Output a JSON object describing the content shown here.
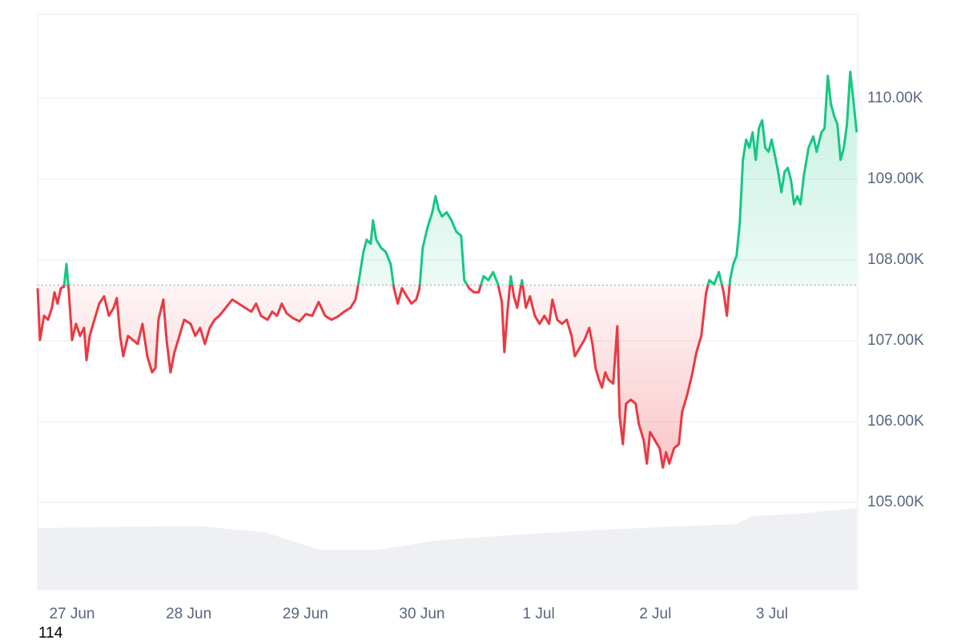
{
  "chart_data": {
    "type": "line",
    "xlim": [
      -0.295,
      6.735
    ],
    "xticks": [
      {
        "value": 0,
        "label": "27 Jun"
      },
      {
        "value": 1,
        "label": "28 Jun"
      },
      {
        "value": 2,
        "label": "29 Jun"
      },
      {
        "value": 3,
        "label": "30 Jun"
      },
      {
        "value": 4,
        "label": "1 Jul"
      },
      {
        "value": 5,
        "label": "2 Jul"
      },
      {
        "value": 6,
        "label": "3 Jul"
      }
    ],
    "ylim": [
      103920,
      111040
    ],
    "yticks": [
      {
        "value": 105000,
        "label": "105.00K"
      },
      {
        "value": 106000,
        "label": "106.00K"
      },
      {
        "value": 107000,
        "label": "107.00K"
      },
      {
        "value": 108000,
        "label": "108.00K"
      },
      {
        "value": 109000,
        "label": "109.00K"
      },
      {
        "value": 110000,
        "label": "110.00K"
      }
    ],
    "grid": true,
    "baseline": 107690,
    "up_color": "#16c784",
    "down_color": "#ea3943",
    "x": [
      -0.295,
      -0.275,
      -0.24,
      -0.206,
      -0.172,
      -0.151,
      -0.124,
      -0.096,
      -0.069,
      -0.048,
      -0.027,
      0,
      0.034,
      0.069,
      0.103,
      0.124,
      0.151,
      0.192,
      0.233,
      0.275,
      0.316,
      0.357,
      0.384,
      0.412,
      0.439,
      0.48,
      0.522,
      0.563,
      0.604,
      0.645,
      0.686,
      0.714,
      0.741,
      0.782,
      0.81,
      0.844,
      0.878,
      0.92,
      0.961,
      1.016,
      1.057,
      1.098,
      1.139,
      1.18,
      1.222,
      1.263,
      1.318,
      1.373,
      1.428,
      1.482,
      1.537,
      1.578,
      1.62,
      1.675,
      1.716,
      1.757,
      1.798,
      1.839,
      1.894,
      1.949,
      2.004,
      2.059,
      2.114,
      2.169,
      2.224,
      2.279,
      2.333,
      2.388,
      2.43,
      2.457,
      2.498,
      2.526,
      2.56,
      2.58,
      2.608,
      2.649,
      2.69,
      2.731,
      2.759,
      2.793,
      2.828,
      2.869,
      2.91,
      2.951,
      2.979,
      3.006,
      3.047,
      3.088,
      3.116,
      3.143,
      3.171,
      3.212,
      3.253,
      3.294,
      3.335,
      3.363,
      3.404,
      3.445,
      3.486,
      3.528,
      3.569,
      3.61,
      3.651,
      3.685,
      3.706,
      3.733,
      3.761,
      3.788,
      3.816,
      3.857,
      3.891,
      3.926,
      3.967,
      4.008,
      4.049,
      4.09,
      4.118,
      4.159,
      4.2,
      4.241,
      4.282,
      4.31,
      4.351,
      4.392,
      4.434,
      4.461,
      4.488,
      4.516,
      4.543,
      4.571,
      4.598,
      4.639,
      4.674,
      4.694,
      4.722,
      4.749,
      4.79,
      4.832,
      4.859,
      4.9,
      4.928,
      4.955,
      4.996,
      5.037,
      5.065,
      5.092,
      5.12,
      5.161,
      5.202,
      5.23,
      5.271,
      5.312,
      5.353,
      5.394,
      5.436,
      5.463,
      5.504,
      5.545,
      5.586,
      5.614,
      5.641,
      5.669,
      5.696,
      5.724,
      5.751,
      5.779,
      5.806,
      5.834,
      5.861,
      5.888,
      5.916,
      5.943,
      5.971,
      5.998,
      6.026,
      6.053,
      6.081,
      6.108,
      6.136,
      6.163,
      6.19,
      6.218,
      6.245,
      6.273,
      6.314,
      6.355,
      6.383,
      6.424,
      6.451,
      6.479,
      6.506,
      6.534,
      6.561,
      6.588,
      6.616,
      6.643,
      6.671,
      6.698,
      6.726
    ],
    "values": [
      107650,
      107010,
      107310,
      107260,
      107410,
      107600,
      107460,
      107650,
      107670,
      107950,
      107600,
      107010,
      107210,
      107060,
      107160,
      106760,
      107060,
      107260,
      107460,
      107550,
      107310,
      107410,
      107530,
      107060,
      106810,
      107060,
      107010,
      106960,
      107210,
      106810,
      106610,
      106660,
      107260,
      107510,
      107010,
      106610,
      106860,
      107060,
      107260,
      107210,
      107060,
      107160,
      106960,
      107160,
      107260,
      107310,
      107410,
      107510,
      107460,
      107410,
      107360,
      107460,
      107310,
      107260,
      107360,
      107310,
      107460,
      107340,
      107280,
      107240,
      107330,
      107310,
      107480,
      107310,
      107260,
      107300,
      107360,
      107410,
      107510,
      107730,
      108100,
      108250,
      108200,
      108490,
      108250,
      108150,
      108100,
      107950,
      107650,
      107460,
      107650,
      107550,
      107460,
      107510,
      107650,
      108150,
      108400,
      108590,
      108790,
      108620,
      108540,
      108590,
      108490,
      108350,
      108300,
      107750,
      107650,
      107600,
      107600,
      107800,
      107750,
      107850,
      107700,
      107480,
      106860,
      107360,
      107800,
      107550,
      107410,
      107750,
      107410,
      107550,
      107310,
      107210,
      107310,
      107210,
      107510,
      107260,
      107210,
      107260,
      107060,
      106810,
      106910,
      107010,
      107160,
      106960,
      106660,
      106520,
      106420,
      106610,
      106520,
      106470,
      107180,
      106070,
      105720,
      106220,
      106270,
      106220,
      105970,
      105770,
      105480,
      105870,
      105770,
      105670,
      105430,
      105620,
      105480,
      105670,
      105720,
      106120,
      106320,
      106560,
      106860,
      107060,
      107600,
      107750,
      107700,
      107850,
      107600,
      107310,
      107750,
      107950,
      108050,
      108450,
      109240,
      109490,
      109390,
      109580,
      109240,
      109630,
      109730,
      109390,
      109340,
      109490,
      109290,
      109090,
      108840,
      109090,
      109140,
      108990,
      108690,
      108790,
      108690,
      109040,
      109390,
      109530,
      109340,
      109580,
      109630,
      110280,
      109930,
      109780,
      109680,
      109240,
      109390,
      109680,
      110330,
      109980,
      109580
    ],
    "y2lim": [
      0,
      100
    ],
    "volume": {
      "color": "#eef0f3",
      "axis": "y2",
      "x": [
        -0.295,
        0.412,
        1.098,
        1.647,
        2.128,
        2.608,
        3.157,
        3.843,
        4.53,
        5.216,
        5.696,
        5.834,
        6.245,
        6.726
      ],
      "values": [
        10.7,
        10.9,
        11.0,
        10.0,
        6.9,
        6.9,
        8.6,
        9.6,
        10.4,
        11.0,
        11.4,
        12.8,
        13.2,
        14.2
      ]
    }
  },
  "caption": "114"
}
